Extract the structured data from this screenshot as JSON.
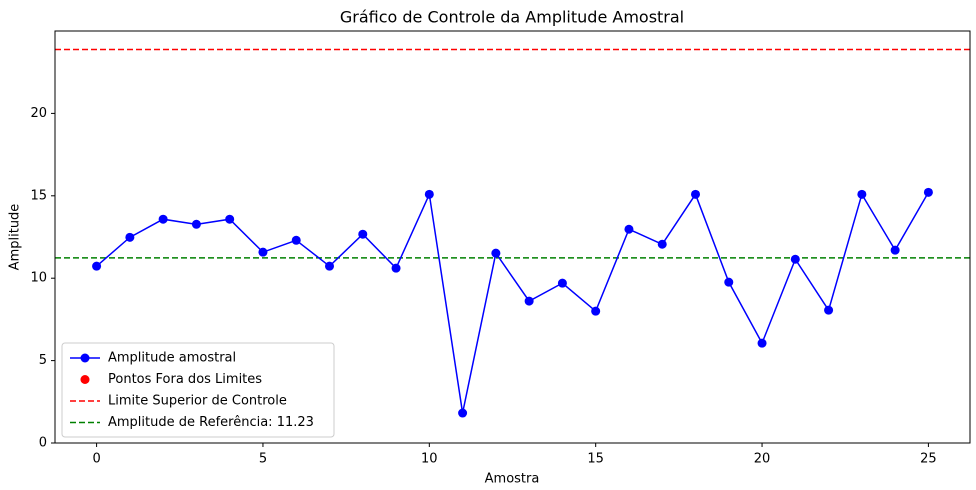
{
  "chart_data": {
    "type": "line",
    "title": "Gráfico de Controle da Amplitude Amostral",
    "x_label": "Amostra",
    "y_label": "Amplitude",
    "x": [
      0,
      1,
      2,
      3,
      4,
      5,
      6,
      7,
      8,
      9,
      10,
      11,
      12,
      13,
      14,
      15,
      16,
      17,
      18,
      19,
      20,
      21,
      22,
      23,
      24,
      25
    ],
    "series": [
      {
        "name": "Amplitude amostral",
        "color": "#0000ff",
        "marker": "o",
        "linestyle": "solid",
        "values": [
          10.73,
          12.48,
          13.58,
          13.27,
          13.58,
          11.58,
          12.3,
          10.73,
          12.67,
          10.61,
          15.09,
          1.82,
          11.52,
          8.61,
          9.7,
          8.0,
          12.97,
          12.06,
          15.09,
          9.76,
          6.06,
          11.15,
          8.06,
          15.09,
          11.7,
          15.21
        ]
      },
      {
        "name": "Pontos Fora dos Limites",
        "color": "#ff0000",
        "marker": "o",
        "linestyle": "none",
        "values": [
          null,
          null,
          null,
          null,
          null,
          null,
          null,
          null,
          null,
          null,
          null,
          null,
          null,
          null,
          null,
          null,
          null,
          null,
          null,
          null,
          null,
          null,
          null,
          null,
          null,
          null
        ]
      }
    ],
    "hlines": [
      {
        "name": "Limite Superior de Controle",
        "color": "#ff0000",
        "value": 23.88
      },
      {
        "name": "Amplitude de Referência: 11.23",
        "color": "#008000",
        "value": 11.23
      }
    ],
    "xlim": [
      -1.25,
      26.25
    ],
    "ylim": [
      0,
      25
    ],
    "xticks": [
      0,
      5,
      10,
      15,
      20,
      25
    ],
    "yticks": [
      0,
      5,
      10,
      15,
      20
    ],
    "legend": "lower left"
  }
}
